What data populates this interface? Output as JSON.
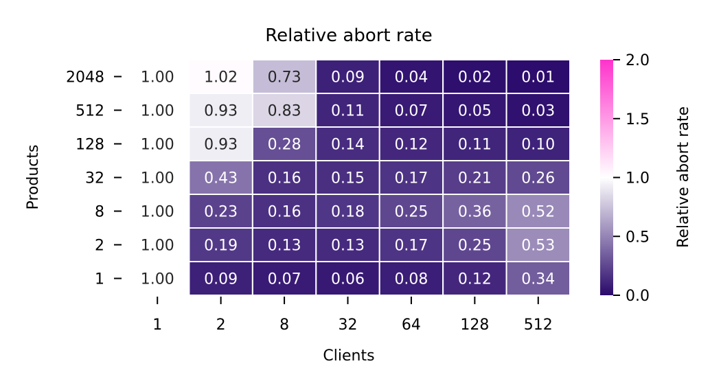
{
  "chart_data": {
    "type": "heatmap",
    "title": "Relative abort rate",
    "xlabel": "Clients",
    "ylabel": "Products",
    "x_categories": [
      "1",
      "2",
      "8",
      "32",
      "64",
      "128",
      "512"
    ],
    "y_categories": [
      "2048",
      "512",
      "128",
      "32",
      "8",
      "2",
      "1"
    ],
    "values": [
      [
        1.0,
        1.02,
        0.73,
        0.09,
        0.04,
        0.02,
        0.01
      ],
      [
        1.0,
        0.93,
        0.83,
        0.11,
        0.07,
        0.05,
        0.03
      ],
      [
        1.0,
        0.93,
        0.28,
        0.14,
        0.12,
        0.11,
        0.1
      ],
      [
        1.0,
        0.43,
        0.16,
        0.15,
        0.17,
        0.21,
        0.26
      ],
      [
        1.0,
        0.23,
        0.16,
        0.18,
        0.25,
        0.36,
        0.52
      ],
      [
        1.0,
        0.19,
        0.13,
        0.13,
        0.17,
        0.25,
        0.53
      ],
      [
        1.0,
        0.09,
        0.07,
        0.06,
        0.08,
        0.12,
        0.34
      ]
    ],
    "value_labels": [
      [
        "1.00",
        "1.02",
        "0.73",
        "0.09",
        "0.04",
        "0.02",
        "0.01"
      ],
      [
        "1.00",
        "0.93",
        "0.83",
        "0.11",
        "0.07",
        "0.05",
        "0.03"
      ],
      [
        "1.00",
        "0.93",
        "0.28",
        "0.14",
        "0.12",
        "0.11",
        "0.10"
      ],
      [
        "1.00",
        "0.43",
        "0.16",
        "0.15",
        "0.17",
        "0.21",
        "0.26"
      ],
      [
        "1.00",
        "0.23",
        "0.16",
        "0.18",
        "0.25",
        "0.36",
        "0.52"
      ],
      [
        "1.00",
        "0.19",
        "0.13",
        "0.13",
        "0.17",
        "0.25",
        "0.53"
      ],
      [
        "1.00",
        "0.09",
        "0.07",
        "0.06",
        "0.08",
        "0.12",
        "0.34"
      ]
    ],
    "colorbar": {
      "label": "Relative abort rate",
      "range": [
        0.0,
        2.0
      ],
      "ticks": [
        "0.0",
        "0.5",
        "1.0",
        "1.5",
        "2.0"
      ],
      "colors": {
        "low": "#2a0a6b",
        "mid": "#ffffff",
        "high": "#ff33cc"
      }
    },
    "grid": true
  }
}
